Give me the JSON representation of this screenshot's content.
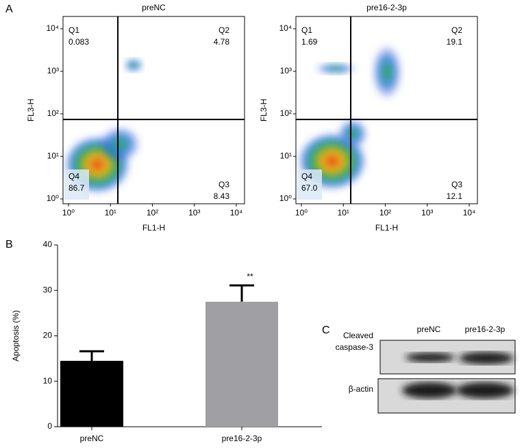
{
  "chart_data": [
    {
      "type": "quadrant",
      "panel": "A",
      "title": "preNC",
      "xlabel": "FL1-H",
      "ylabel": "FL3-H",
      "xscale": "log",
      "yscale": "log",
      "xlim": [
        0.74,
        15700
      ],
      "ylim": [
        0.77,
        19500
      ],
      "xticks": [
        {
          "value": 1,
          "label": "10⁰"
        },
        {
          "value": 10,
          "label": "10¹"
        },
        {
          "value": 100,
          "label": "10²"
        },
        {
          "value": 1000,
          "label": "10³"
        },
        {
          "value": 10000,
          "label": "10⁴"
        }
      ],
      "yticks": [
        {
          "value": 1,
          "label": "10⁰"
        },
        {
          "value": 10,
          "label": "10¹"
        },
        {
          "value": 100,
          "label": "10²"
        },
        {
          "value": 1000,
          "label": "10³"
        },
        {
          "value": 10000,
          "label": "10⁴"
        }
      ],
      "gate": [
        15,
        74
      ],
      "quadrants": {
        "names": [
          "Q1",
          "Q2",
          "Q3",
          "Q4"
        ],
        "values": [
          0.083,
          4.78,
          8.43,
          86.7
        ]
      }
    },
    {
      "type": "quadrant",
      "title": "pre16-2-3p",
      "xlabel": "FL1-H",
      "ylabel": "FL3-H",
      "xscale": "log",
      "yscale": "log",
      "xlim": [
        0.74,
        15700
      ],
      "ylim": [
        0.77,
        19500
      ],
      "xticks": [
        {
          "value": 1,
          "label": "10⁰"
        },
        {
          "value": 10,
          "label": "10¹"
        },
        {
          "value": 100,
          "label": "10²"
        },
        {
          "value": 1000,
          "label": "10³"
        },
        {
          "value": 10000,
          "label": "10⁴"
        }
      ],
      "yticks": [
        {
          "value": 1,
          "label": "10⁰"
        },
        {
          "value": 10,
          "label": "10¹"
        },
        {
          "value": 100,
          "label": "10²"
        },
        {
          "value": 1000,
          "label": "10³"
        },
        {
          "value": 10000,
          "label": "10⁴"
        }
      ],
      "gate": [
        15,
        74
      ],
      "quadrants": {
        "names": [
          "Q1",
          "Q2",
          "Q3",
          "Q4"
        ],
        "values": [
          1.69,
          19.1,
          12.1,
          67.0
        ],
        "value_labels": [
          "1.69",
          "19.1",
          "12.1",
          "67.0"
        ]
      }
    },
    {
      "type": "bar",
      "panel": "B",
      "ylabel": "Apoptosis (%)",
      "categories": [
        "preNC",
        "pre16-2-3p"
      ],
      "values": [
        14.5,
        27.5
      ],
      "errors": [
        2.1,
        3.6
      ],
      "colors": [
        "#000000",
        "#a0a0a4"
      ],
      "annotations": [
        null,
        "**"
      ],
      "ylim": [
        0,
        40
      ],
      "yticks": [
        0,
        10,
        20,
        30,
        40
      ]
    }
  ],
  "blot": {
    "panel": "C",
    "columns": [
      "preNC",
      "pre16-2-3p"
    ],
    "rows": [
      [
        "Cleaved",
        "caspase-3"
      ],
      [
        "β-actin"
      ]
    ]
  }
}
